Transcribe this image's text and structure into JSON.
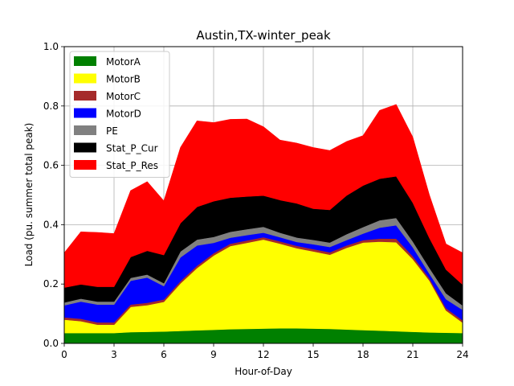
{
  "chart_data": {
    "type": "area",
    "title": "Austin,TX-winter_peak",
    "xlabel": "Hour-of-Day",
    "ylabel": "Load (pu. summer total peak)",
    "xlim": [
      0,
      24
    ],
    "ylim": [
      0,
      1.0
    ],
    "xticks": [
      0,
      3,
      6,
      9,
      12,
      15,
      18,
      21,
      24
    ],
    "yticks": [
      0.0,
      0.2,
      0.4,
      0.6,
      0.8,
      1.0
    ],
    "xtick_labels": [
      "0",
      "3",
      "6",
      "9",
      "12",
      "15",
      "18",
      "21",
      "24"
    ],
    "ytick_labels": [
      "0.0",
      "0.2",
      "0.4",
      "0.6",
      "0.8",
      "1.0"
    ],
    "grid": true,
    "legend_position": "top-left",
    "x": [
      0,
      1,
      2,
      3,
      4,
      5,
      6,
      7,
      8,
      9,
      10,
      11,
      12,
      13,
      14,
      15,
      16,
      17,
      18,
      19,
      20,
      21,
      22,
      23,
      24
    ],
    "series_note": "values are stacked layer thicknesses",
    "series": [
      {
        "name": "MotorA",
        "color": "#008000",
        "values": [
          0.035,
          0.035,
          0.035,
          0.035,
          0.038,
          0.039,
          0.04,
          0.042,
          0.044,
          0.046,
          0.048,
          0.049,
          0.05,
          0.051,
          0.051,
          0.05,
          0.049,
          0.047,
          0.045,
          0.043,
          0.041,
          0.039,
          0.037,
          0.036,
          0.035
        ]
      },
      {
        "name": "MotorB",
        "color": "#ffff00",
        "values": [
          0.045,
          0.04,
          0.028,
          0.028,
          0.085,
          0.09,
          0.1,
          0.16,
          0.21,
          0.25,
          0.28,
          0.29,
          0.3,
          0.285,
          0.27,
          0.26,
          0.25,
          0.275,
          0.295,
          0.3,
          0.3,
          0.245,
          0.175,
          0.075,
          0.035
        ]
      },
      {
        "name": "MotorC",
        "color": "#a52a2a",
        "values": [
          0.008,
          0.008,
          0.008,
          0.008,
          0.008,
          0.008,
          0.008,
          0.008,
          0.008,
          0.008,
          0.008,
          0.008,
          0.008,
          0.008,
          0.008,
          0.008,
          0.008,
          0.008,
          0.008,
          0.01,
          0.012,
          0.01,
          0.008,
          0.008,
          0.008
        ]
      },
      {
        "name": "MotorD",
        "color": "#0000ff",
        "values": [
          0.04,
          0.058,
          0.06,
          0.06,
          0.08,
          0.085,
          0.045,
          0.08,
          0.068,
          0.035,
          0.02,
          0.018,
          0.015,
          0.014,
          0.013,
          0.016,
          0.018,
          0.018,
          0.022,
          0.037,
          0.045,
          0.03,
          0.015,
          0.03,
          0.035
        ]
      },
      {
        "name": "PE",
        "color": "#808080",
        "values": [
          0.01,
          0.01,
          0.01,
          0.01,
          0.01,
          0.01,
          0.01,
          0.02,
          0.02,
          0.02,
          0.02,
          0.02,
          0.02,
          0.015,
          0.015,
          0.015,
          0.015,
          0.02,
          0.022,
          0.025,
          0.025,
          0.02,
          0.02,
          0.02,
          0.015
        ]
      },
      {
        "name": "Stat_P_Cur",
        "color": "#000000",
        "values": [
          0.05,
          0.048,
          0.05,
          0.05,
          0.07,
          0.08,
          0.095,
          0.095,
          0.11,
          0.12,
          0.115,
          0.11,
          0.105,
          0.11,
          0.115,
          0.105,
          0.11,
          0.13,
          0.14,
          0.14,
          0.14,
          0.13,
          0.1,
          0.08,
          0.07
        ]
      },
      {
        "name": "Stat_P_Res",
        "color": "#ff0000",
        "values": [
          0.117,
          0.177,
          0.183,
          0.179,
          0.224,
          0.233,
          0.182,
          0.255,
          0.29,
          0.265,
          0.264,
          0.261,
          0.232,
          0.202,
          0.203,
          0.206,
          0.2,
          0.182,
          0.168,
          0.23,
          0.242,
          0.221,
          0.145,
          0.086,
          0.107
        ]
      }
    ]
  }
}
